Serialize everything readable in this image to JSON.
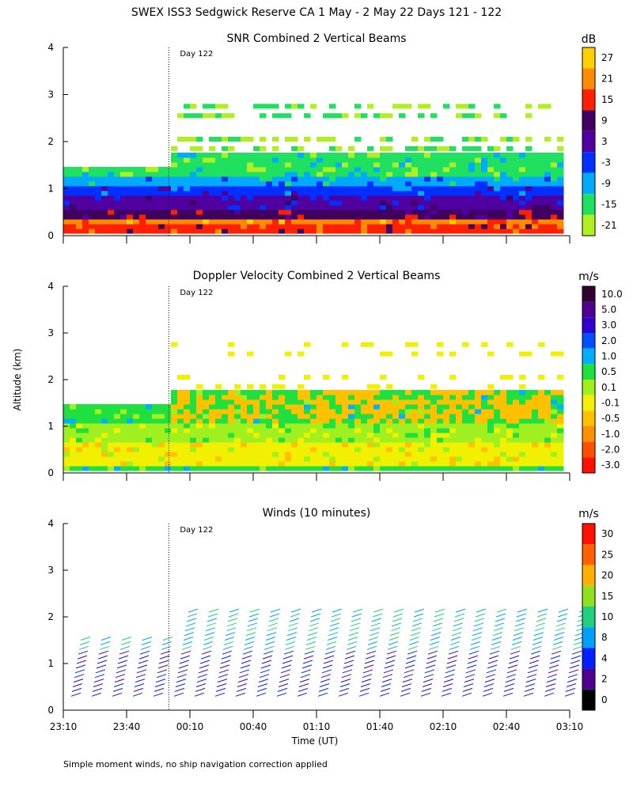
{
  "title": "SWEX ISS3 Sedgwick Reserve CA   1 May -  2 May 22 Days 121 - 122",
  "ylabel": "Altitude (km)",
  "xlabel": "Time (UT)",
  "footnote": "Simple moment winds, no ship navigation correction applied",
  "day_marker_label": "Day 122",
  "x_ticks": [
    "23:10",
    "23:40",
    "00:10",
    "00:40",
    "01:10",
    "01:40",
    "02:10",
    "02:40",
    "03:10"
  ],
  "y_ticks": [
    "0",
    "1",
    "2",
    "3",
    "4"
  ],
  "chart_data": [
    {
      "type": "heatmap",
      "title": "SNR Combined 2 Vertical Beams",
      "unit": "dB",
      "xlim": [
        "23:10",
        "03:10"
      ],
      "ylim": [
        0,
        4
      ],
      "day_boundary": "00:00",
      "colorbar": {
        "labels": [
          "27",
          "21",
          "15",
          "9",
          "3",
          "-3",
          "-9",
          "-15",
          "-21"
        ],
        "colors": [
          "#ffd000",
          "#ff8c00",
          "#ff2000",
          "#400060",
          "#5000a0",
          "#0030ff",
          "#00aaff",
          "#20e060",
          "#b0f020"
        ]
      },
      "bands": [
        {
          "from": 0.05,
          "to": 0.2,
          "value": 15
        },
        {
          "from": 0.2,
          "to": 0.35,
          "value": 21
        },
        {
          "from": 0.35,
          "to": 0.55,
          "value": 9
        },
        {
          "from": 0.55,
          "to": 0.8,
          "value": 3
        },
        {
          "from": 0.8,
          "to": 1.0,
          "value": -3
        },
        {
          "from": 1.0,
          "to": 1.25,
          "value": -9
        },
        {
          "from": 1.25,
          "to": 1.45,
          "value": -15
        }
      ]
    },
    {
      "type": "heatmap",
      "title": "Doppler Velocity Combined 2 Vertical Beams",
      "unit": "m/s",
      "xlim": [
        "23:10",
        "03:10"
      ],
      "ylim": [
        0,
        4
      ],
      "day_boundary": "00:00",
      "colorbar": {
        "labels": [
          "10.0",
          "5.0",
          "3.0",
          "2.0",
          "1.0",
          "0.5",
          "0.1",
          "-0.1",
          "-0.5",
          "-1.0",
          "-2.0",
          "-3.0"
        ],
        "colors": [
          "#300030",
          "#500090",
          "#3000d0",
          "#0050ff",
          "#00b0ff",
          "#20e040",
          "#a0f020",
          "#f0f000",
          "#ffc000",
          "#ff9000",
          "#ff5000",
          "#ff1000"
        ]
      },
      "bands": [
        {
          "from": 0.1,
          "to": 0.6,
          "value": -0.1
        },
        {
          "from": 0.6,
          "to": 1.0,
          "value": 0.1
        },
        {
          "from": 1.0,
          "to": 1.45,
          "value": 0.5
        }
      ]
    },
    {
      "type": "wind-barbs",
      "title": "Winds (10 minutes)",
      "unit": "m/s",
      "xlim": [
        "23:10",
        "03:10"
      ],
      "ylim": [
        0,
        4
      ],
      "day_boundary": "00:00",
      "colorbar": {
        "labels": [
          "30",
          "25",
          "20",
          "15",
          "10",
          "8",
          "4",
          "2",
          "0"
        ],
        "colors": [
          "#ff1000",
          "#ff6000",
          "#ffb000",
          "#90e020",
          "#20d080",
          "#00a0ff",
          "#0020ff",
          "#500090",
          "#000000"
        ]
      }
    }
  ]
}
